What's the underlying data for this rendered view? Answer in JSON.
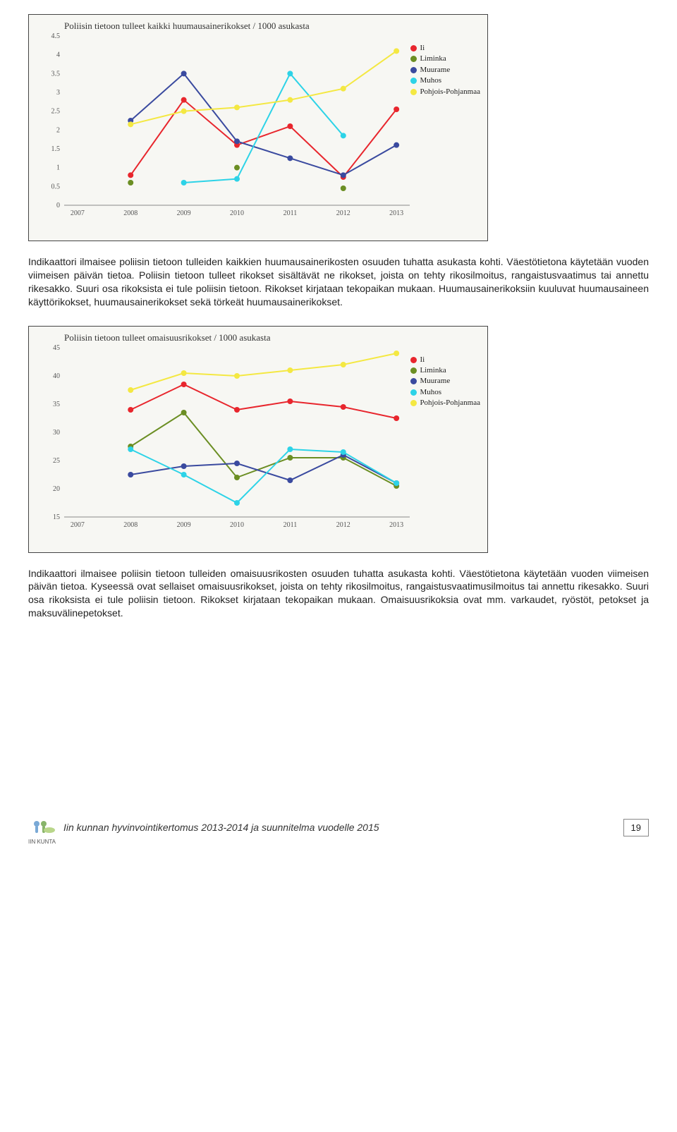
{
  "chart1": {
    "title": "Poliisin tietoon tulleet kaikki huumausainerikokset / 1000 asukasta",
    "type": "line",
    "background_color": "#f7f7f3",
    "x_labels": [
      "2007",
      "2008",
      "2009",
      "2010",
      "2011",
      "2012",
      "2013"
    ],
    "ylim": [
      0,
      4.5
    ],
    "ytick_step": 0.5,
    "y_labels": [
      "0",
      "0.5",
      "1",
      "1.5",
      "2",
      "2.5",
      "3",
      "3.5",
      "4",
      "4.5"
    ],
    "axis_font_family": "Georgia, serif",
    "axis_font_size": 10,
    "axis_color": "#777777",
    "line_width": 2,
    "marker_radius": 4,
    "series": [
      {
        "name": "Ii",
        "color": "#e8262d",
        "values": [
          null,
          0.8,
          2.8,
          1.6,
          2.1,
          0.75,
          2.55
        ]
      },
      {
        "name": "Liminka",
        "color": "#6b8e23",
        "values": [
          null,
          0.6,
          null,
          1.0,
          null,
          0.45,
          null
        ]
      },
      {
        "name": "Muurame",
        "color": "#3a4a9f",
        "values": [
          null,
          2.25,
          3.5,
          1.7,
          1.25,
          0.8,
          1.6
        ]
      },
      {
        "name": "Muhos",
        "color": "#2dd3e7",
        "values": [
          null,
          null,
          0.6,
          0.7,
          3.5,
          1.85,
          null
        ]
      },
      {
        "name": "Pohjois-Pohjanmaa",
        "color": "#f4e842",
        "values": [
          null,
          2.15,
          2.5,
          2.6,
          2.8,
          3.1,
          4.1
        ]
      }
    ]
  },
  "para1": "Indikaattori ilmaisee poliisin tietoon tulleiden kaikkien huumausainerikosten osuuden tuhatta asukasta kohti. Väestötietona käytetään vuoden viimeisen päivän tietoa. Poliisin tietoon tulleet rikokset sisältävät ne rikokset, joista on tehty rikosilmoitus, rangaistusvaatimus tai annettu rikesakko. Suuri osa rikoksista ei tule poliisin tietoon. Rikokset kirjataan tekopaikan mukaan. Huumausainerikoksiin kuuluvat huumausaineen käyttörikokset, huumausainerikokset sekä törkeät huumausainerikokset.",
  "chart2": {
    "title": "Poliisin tietoon tulleet omaisuusrikokset / 1000 asukasta",
    "type": "line",
    "background_color": "#f7f7f3",
    "x_labels": [
      "2007",
      "2008",
      "2009",
      "2010",
      "2011",
      "2012",
      "2013"
    ],
    "ylim": [
      15,
      45
    ],
    "ytick_step": 5,
    "y_labels": [
      "15",
      "20",
      "25",
      "30",
      "35",
      "40",
      "45"
    ],
    "axis_font_family": "Georgia, serif",
    "axis_font_size": 10,
    "axis_color": "#777777",
    "line_width": 2,
    "marker_radius": 4,
    "series": [
      {
        "name": "Ii",
        "color": "#e8262d",
        "values": [
          null,
          34,
          38.5,
          34,
          35.5,
          34.5,
          32.5
        ]
      },
      {
        "name": "Liminka",
        "color": "#6b8e23",
        "values": [
          null,
          27.5,
          33.5,
          22,
          25.5,
          25.5,
          20.5
        ]
      },
      {
        "name": "Muurame",
        "color": "#3a4a9f",
        "values": [
          null,
          22.5,
          24,
          24.5,
          21.5,
          26,
          21
        ]
      },
      {
        "name": "Muhos",
        "color": "#2dd3e7",
        "values": [
          null,
          27,
          22.5,
          17.5,
          27,
          26.5,
          21
        ]
      },
      {
        "name": "Pohjois-Pohjanmaa",
        "color": "#f4e842",
        "values": [
          null,
          37.5,
          40.5,
          40,
          41,
          42,
          44
        ]
      }
    ]
  },
  "para2": "Indikaattori ilmaisee poliisin tietoon tulleiden omaisuusrikosten osuuden tuhatta asukasta kohti. Väestötietona käytetään vuoden viimeisen päivän tietoa. Kyseessä ovat sellaiset omaisuusrikokset, joista on tehty rikosilmoitus, rangaistusvaatimusilmoitus tai annettu rikesakko. Suuri osa rikoksista ei tule poliisin tietoon. Rikokset kirjataan tekopaikan mukaan. Omaisuusrikoksia ovat mm. varkaudet, ryöstöt, petokset ja maksuvälinepetokset.",
  "footer": {
    "logo_text_top": "IIN KUNTA",
    "title": "Iin kunnan hyvinvointikertomus 2013-2014 ja suunnitelma vuodelle 2015",
    "page": "19"
  }
}
